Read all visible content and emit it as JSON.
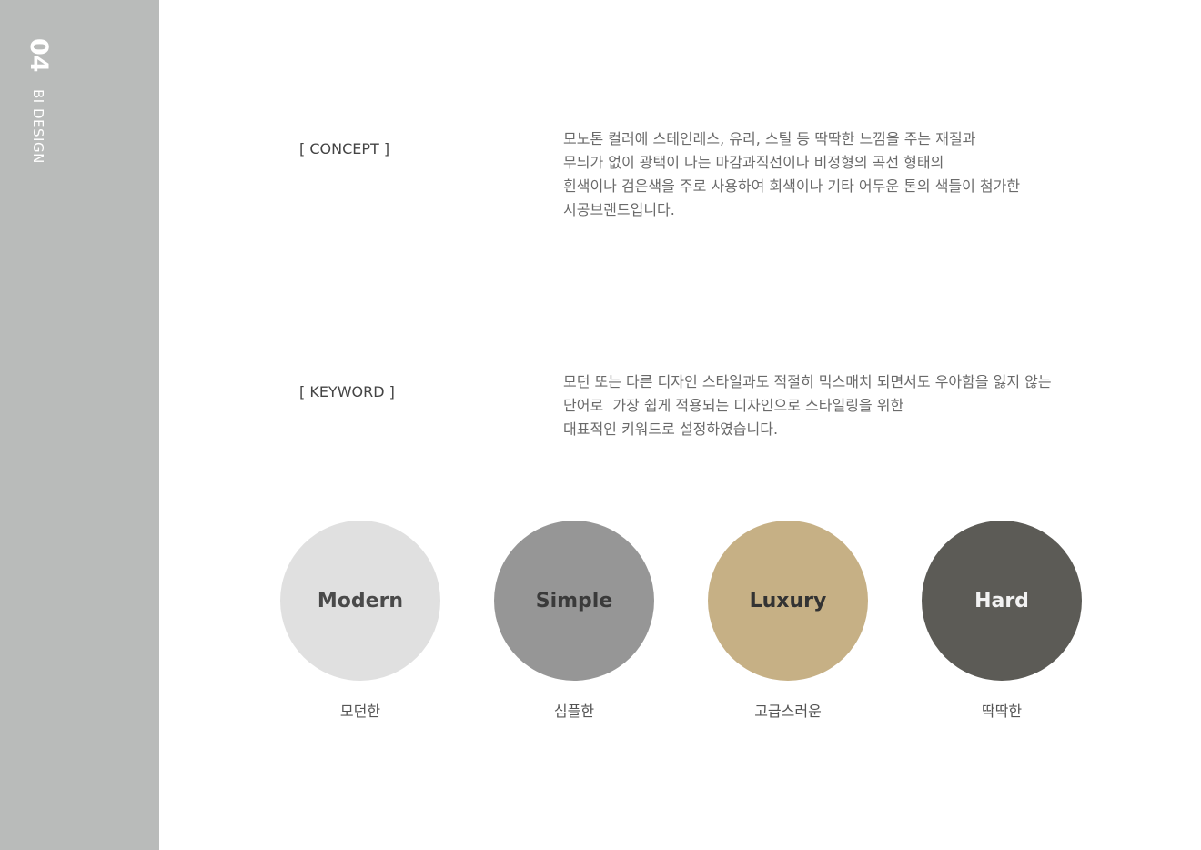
{
  "sidebar": {
    "number": "04",
    "title": "BI DESIGN"
  },
  "concept": {
    "label": "[ CONCEPT ]",
    "lines": [
      "모노톤 컬러에 스테인레스, 유리, 스틸 등 딱딱한 느낌을 주는 재질과",
      "무늬가 없이 광택이 나는 마감과직선이나 비정형의 곡선 형태의",
      "흰색이나 검은색을 주로 사용하여 회색이나 기타 어두운 톤의 색들이 첨가한",
      "시공브랜드입니다."
    ]
  },
  "keyword": {
    "label": "[ KEYWORD ]",
    "lines": [
      "모던 또는 다른 디자인 스타일과도 적절히 믹스매치 되면서도 우아함을 잃지 않는",
      "단어로  가장 쉽게 적용되는 디자인으로 스타일링을 위한",
      "대표적인 키워드로 설정하였습니다."
    ]
  },
  "keywords": [
    {
      "name": "Modern",
      "caption": "모던한",
      "color": "#e0e0e0",
      "text_color": "#4a4a4a"
    },
    {
      "name": "Simple",
      "caption": "심플한",
      "color": "#969696",
      "text_color": "#3a3a3a"
    },
    {
      "name": "Luxury",
      "caption": "고급스러운",
      "color": "#c6b085",
      "text_color": "#333333"
    },
    {
      "name": "Hard",
      "caption": "딱딱한",
      "color": "#5c5b56",
      "text_color": "#f2f2f2"
    }
  ]
}
